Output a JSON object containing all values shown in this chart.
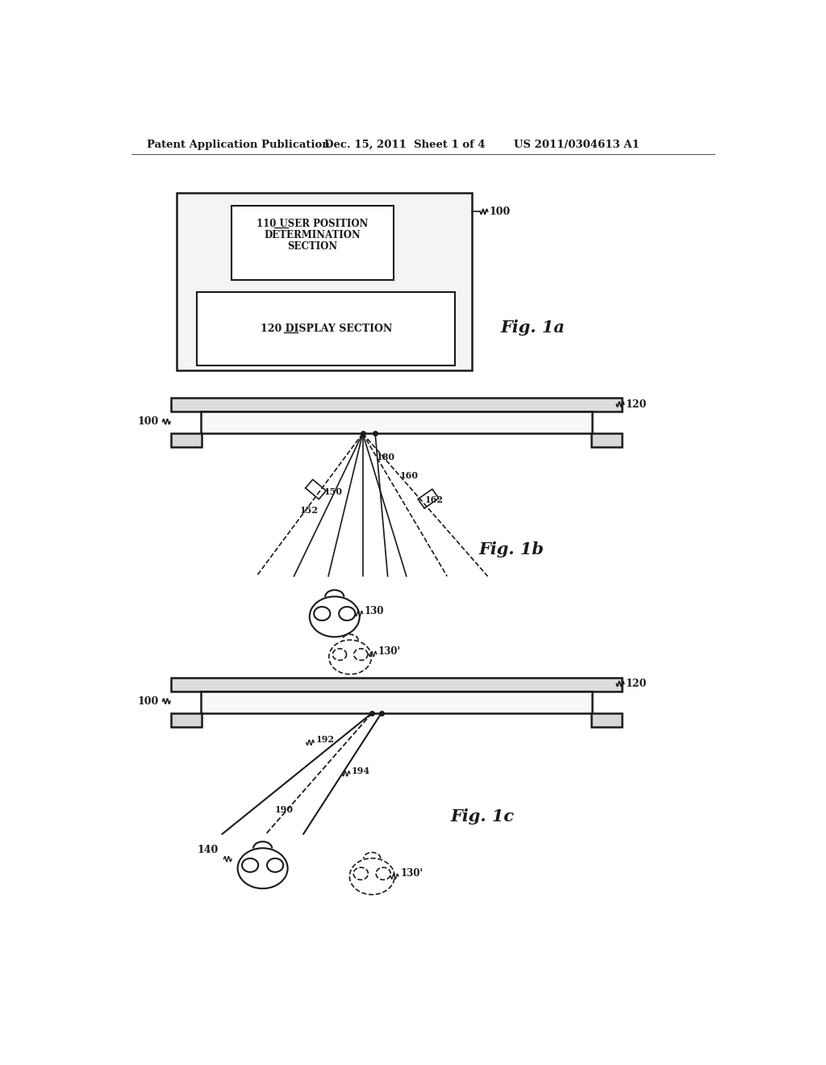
{
  "bg_color": "#ffffff",
  "line_color": "#1a1a1a",
  "header_text1": "Patent Application Publication",
  "header_text2": "Dec. 15, 2011  Sheet 1 of 4",
  "header_text3": "US 2011/0304613 A1",
  "fig1a_label": "Fig. 1a",
  "fig1b_label": "Fig. 1b",
  "fig1c_label": "Fig. 1c"
}
